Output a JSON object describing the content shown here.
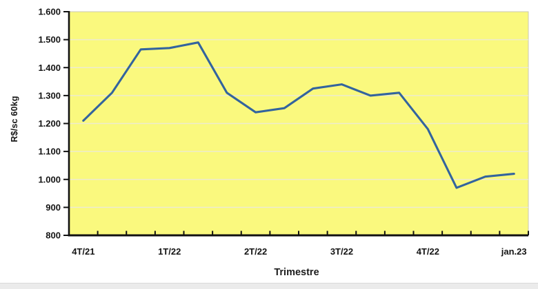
{
  "page": {
    "background": "#ffffff",
    "bottom_strip_color": "#ebebeb"
  },
  "chart_data": {
    "type": "line",
    "title": "",
    "ylabel": "R$/sc 60kg",
    "xlabel": "Trimestre",
    "n_categories": 16,
    "categories_note": "monthly points, 3 per quarter; labels mark first month of each quarter",
    "x_tick_labels": [
      "4T/21",
      "1T/22",
      "2T/22",
      "3T/22",
      "4T/22",
      "jan.23"
    ],
    "x_labeled_category_indices": [
      0,
      3,
      6,
      9,
      12,
      15
    ],
    "series": [
      {
        "name": "R$/sc 60kg",
        "color": "#33649e",
        "values": [
          1210,
          1310,
          1465,
          1470,
          1490,
          1310,
          1240,
          1255,
          1325,
          1340,
          1300,
          1310,
          1180,
          970,
          1010,
          1020
        ]
      }
    ],
    "ylim": [
      800,
      1600
    ],
    "y_step": 100,
    "y_ticks": [
      800,
      900,
      1000,
      1100,
      1200,
      1300,
      1400,
      1500,
      1600
    ],
    "y_tick_labels": [
      "800",
      "900",
      "1.000",
      "1.100",
      "1.200",
      "1.300",
      "1.400",
      "1.500",
      "1.600"
    ],
    "grid": "horizontal",
    "legend": "none",
    "plot_bg": "#faf97e",
    "grid_color": "#edebcf",
    "axis_color": "#111111",
    "plot_border_color": "#c9c9b4"
  }
}
